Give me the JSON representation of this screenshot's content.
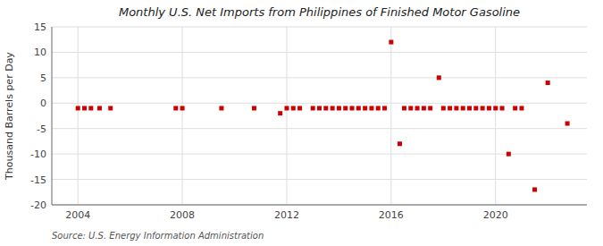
{
  "chart_data": {
    "type": "scatter",
    "title": "Monthly U.S. Net Imports from Philippines of Finished Motor Gasoline",
    "ylabel": "Thousand Barrels per Day",
    "source": "Source: U.S. Energy Information Administration",
    "color": "#cc0000",
    "marker": "square",
    "grid": true,
    "xlim": [
      2003.0,
      2023.5
    ],
    "ylim": [
      -20,
      15
    ],
    "xticks": [
      2004,
      2008,
      2012,
      2016,
      2020
    ],
    "yticks": [
      -20,
      -15,
      -10,
      -5,
      0,
      5,
      10,
      15
    ],
    "x": [
      2004.0,
      2004.25,
      2004.5,
      2004.83,
      2005.25,
      2007.75,
      2008.0,
      2009.5,
      2010.75,
      2011.75,
      2012.0,
      2012.25,
      2012.5,
      2013.0,
      2013.25,
      2013.5,
      2013.75,
      2014.0,
      2014.25,
      2014.5,
      2014.75,
      2015.0,
      2015.25,
      2015.5,
      2015.75,
      2016.0,
      2016.33,
      2016.5,
      2016.75,
      2017.0,
      2017.25,
      2017.5,
      2017.83,
      2018.0,
      2018.25,
      2018.5,
      2018.75,
      2019.0,
      2019.25,
      2019.5,
      2019.75,
      2020.0,
      2020.25,
      2020.5,
      2020.75,
      2021.0,
      2021.5,
      2022.0,
      2022.75
    ],
    "values": [
      -1,
      -1,
      -1,
      -1,
      -1,
      -1,
      -1,
      -1,
      -1,
      -2,
      -1,
      -1,
      -1,
      -1,
      -1,
      -1,
      -1,
      -1,
      -1,
      -1,
      -1,
      -1,
      -1,
      -1,
      -1,
      12,
      -8,
      -1,
      -1,
      -1,
      -1,
      -1,
      5,
      -1,
      -1,
      -1,
      -1,
      -1,
      -1,
      -1,
      -1,
      -1,
      -1,
      -10,
      -1,
      -1,
      -17,
      4,
      -4
    ]
  }
}
